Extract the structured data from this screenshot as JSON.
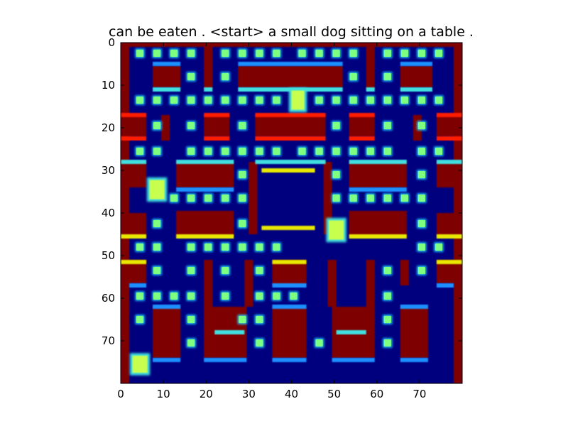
{
  "chart_data": {
    "type": "heatmap",
    "title": "can be eaten . <start> a small dog sitting on a table .",
    "xlabel": "",
    "ylabel": "",
    "x_range": [
      0,
      80
    ],
    "y_range": [
      0,
      80
    ],
    "y_inverted": true,
    "grid": false,
    "colormap": "jet",
    "colors": {
      "background": "#00007f",
      "wall": "#7f0000",
      "wall_edge_red": "#ff1a00",
      "wall_edge_yellow": "#e8e800",
      "edge_cyan": "#40e0e0",
      "edge_blue": "#1e90ff",
      "pellet": "#7fff7f",
      "pellet_halo": "#1ec8ff",
      "sprite": "#c8ff50"
    },
    "x_ticks": [
      "0",
      "10",
      "20",
      "30",
      "40",
      "50",
      "60",
      "70"
    ],
    "y_ticks": [
      "0",
      "10",
      "20",
      "30",
      "40",
      "50",
      "60",
      "70"
    ],
    "walls": [
      [
        0,
        0,
        2,
        80,
        "wall"
      ],
      [
        78,
        0,
        2,
        80,
        "wall"
      ],
      [
        0,
        0,
        80,
        1,
        "wall"
      ],
      [
        19.5,
        0,
        2,
        11,
        "wall"
      ],
      [
        57.5,
        0,
        2,
        11,
        "wall"
      ],
      [
        7.5,
        5.5,
        6.5,
        5,
        "wall"
      ],
      [
        27.5,
        5.5,
        24.5,
        5,
        "wall"
      ],
      [
        65.5,
        5.5,
        7.5,
        5,
        "wall"
      ],
      [
        19.5,
        17,
        6,
        5,
        "wall"
      ],
      [
        31.5,
        17,
        16.5,
        5,
        "wall"
      ],
      [
        53.5,
        17,
        6,
        5,
        "wall"
      ],
      [
        0,
        17,
        6,
        5,
        "wall"
      ],
      [
        74,
        17,
        6,
        5,
        "wall"
      ],
      [
        13,
        28,
        13.5,
        6,
        "wall"
      ],
      [
        53.5,
        28,
        13.5,
        6,
        "wall"
      ],
      [
        0,
        28,
        6,
        6,
        "wall"
      ],
      [
        74,
        28,
        6,
        6,
        "wall"
      ],
      [
        0,
        40,
        6,
        5.5,
        "wall"
      ],
      [
        74,
        40,
        6,
        5.5,
        "wall"
      ],
      [
        13,
        39.5,
        13.5,
        6,
        "wall"
      ],
      [
        53.5,
        39.5,
        13.5,
        6,
        "wall"
      ],
      [
        9.5,
        17,
        2,
        6,
        "wall"
      ],
      [
        68.5,
        17,
        2,
        6,
        "wall"
      ],
      [
        30,
        28,
        2,
        17,
        "wall"
      ],
      [
        47.5,
        28,
        2,
        17,
        "wall"
      ],
      [
        0,
        51,
        6,
        5.5,
        "wall"
      ],
      [
        74,
        51,
        6,
        5.5,
        "wall"
      ],
      [
        19.5,
        51,
        2,
        11,
        "wall"
      ],
      [
        57.5,
        51,
        2,
        11,
        "wall"
      ],
      [
        35.5,
        51,
        8,
        6,
        "wall"
      ],
      [
        48.5,
        51,
        2,
        11,
        "wall"
      ],
      [
        29,
        51,
        2,
        11,
        "wall"
      ],
      [
        7.5,
        62,
        6.5,
        12,
        "wall"
      ],
      [
        19.5,
        62,
        10,
        12,
        "wall"
      ],
      [
        35.5,
        62,
        8,
        12,
        "wall"
      ],
      [
        49.5,
        62,
        10,
        12,
        "wall"
      ],
      [
        65.5,
        62,
        6.5,
        12,
        "wall"
      ],
      [
        65.5,
        51,
        2,
        6,
        "wall"
      ],
      [
        0,
        56.5,
        2,
        23.5,
        "wall"
      ],
      [
        78,
        56.5,
        2,
        23.5,
        "wall"
      ]
    ],
    "edges": [
      [
        7.5,
        4.5,
        6.5,
        1,
        "edge_blue"
      ],
      [
        27.5,
        4.5,
        24.5,
        1,
        "edge_blue"
      ],
      [
        65.5,
        4.5,
        7.5,
        1,
        "edge_blue"
      ],
      [
        7.5,
        10.5,
        6.5,
        1,
        "edge_cyan"
      ],
      [
        27.5,
        10.5,
        24.5,
        1,
        "edge_cyan"
      ],
      [
        65.5,
        10.5,
        7.5,
        1,
        "edge_cyan"
      ],
      [
        19.5,
        10.5,
        2,
        1,
        "edge_cyan"
      ],
      [
        57.5,
        10.5,
        2,
        1,
        "edge_cyan"
      ],
      [
        19.5,
        16.5,
        6,
        1,
        "wall_edge_red"
      ],
      [
        31.5,
        16.5,
        16.5,
        1,
        "wall_edge_red"
      ],
      [
        53.5,
        16.5,
        6,
        1,
        "wall_edge_red"
      ],
      [
        0,
        16.5,
        6,
        1,
        "wall_edge_red"
      ],
      [
        74,
        16.5,
        6,
        1,
        "wall_edge_red"
      ],
      [
        19.5,
        22,
        6,
        1,
        "wall_edge_red"
      ],
      [
        31.5,
        22,
        16.5,
        1,
        "wall_edge_red"
      ],
      [
        53.5,
        22,
        6,
        1,
        "wall_edge_red"
      ],
      [
        0,
        22,
        6,
        1,
        "wall_edge_red"
      ],
      [
        74,
        22,
        6,
        1,
        "wall_edge_red"
      ],
      [
        0,
        27.5,
        6,
        1,
        "edge_cyan"
      ],
      [
        74,
        27.5,
        6,
        1,
        "edge_cyan"
      ],
      [
        13,
        27.5,
        13.5,
        1,
        "edge_cyan"
      ],
      [
        53.5,
        27.5,
        13.5,
        1,
        "edge_cyan"
      ],
      [
        31.5,
        27.5,
        16.5,
        1,
        "edge_cyan"
      ],
      [
        13,
        34,
        13.5,
        1,
        "edge_blue"
      ],
      [
        53.5,
        34,
        13.5,
        1,
        "edge_blue"
      ],
      [
        33,
        29.5,
        12.5,
        1,
        "wall_edge_yellow"
      ],
      [
        33,
        43,
        12.5,
        1,
        "wall_edge_yellow"
      ],
      [
        0,
        45,
        6,
        1,
        "wall_edge_yellow"
      ],
      [
        74,
        45,
        6,
        1,
        "wall_edge_yellow"
      ],
      [
        13,
        45,
        13.5,
        1,
        "wall_edge_yellow"
      ],
      [
        53.5,
        45,
        13.5,
        1,
        "wall_edge_yellow"
      ],
      [
        0,
        51,
        6,
        1,
        "wall_edge_yellow"
      ],
      [
        74,
        51,
        6,
        1,
        "wall_edge_yellow"
      ],
      [
        35.5,
        51,
        8,
        1,
        "wall_edge_yellow"
      ],
      [
        2,
        56.5,
        4,
        1,
        "edge_blue"
      ],
      [
        74,
        56.5,
        4,
        1,
        "edge_blue"
      ],
      [
        35.5,
        56.5,
        8,
        1,
        "edge_blue"
      ],
      [
        7.5,
        61.5,
        6.5,
        1,
        "edge_blue"
      ],
      [
        35.5,
        61.5,
        8,
        1,
        "edge_blue"
      ],
      [
        65.5,
        61.5,
        6.5,
        1,
        "edge_blue"
      ],
      [
        22,
        67.5,
        7,
        1,
        "edge_cyan"
      ],
      [
        50.5,
        67.5,
        7,
        1,
        "edge_cyan"
      ],
      [
        7.5,
        74,
        6.5,
        1,
        "edge_blue"
      ],
      [
        19.5,
        74,
        10,
        1,
        "edge_blue"
      ],
      [
        35.5,
        74,
        8,
        1,
        "edge_blue"
      ],
      [
        49.5,
        74,
        10,
        1,
        "edge_blue"
      ],
      [
        65.5,
        74,
        6.5,
        1,
        "edge_blue"
      ]
    ],
    "pellets": [
      [
        4.5,
        2.5
      ],
      [
        8.5,
        2.5
      ],
      [
        12.5,
        2.5
      ],
      [
        16.5,
        2.5
      ],
      [
        24.5,
        2.5
      ],
      [
        28.5,
        2.5
      ],
      [
        32.5,
        2.5
      ],
      [
        36.5,
        2.5
      ],
      [
        42.5,
        2.5
      ],
      [
        46.5,
        2.5
      ],
      [
        50.5,
        2.5
      ],
      [
        54.5,
        2.5
      ],
      [
        62.5,
        2.5
      ],
      [
        66.5,
        2.5
      ],
      [
        70.5,
        2.5
      ],
      [
        74.5,
        2.5
      ],
      [
        16.5,
        8
      ],
      [
        24.5,
        8
      ],
      [
        54.5,
        8
      ],
      [
        62.5,
        8
      ],
      [
        4.5,
        13.5
      ],
      [
        8.5,
        13.5
      ],
      [
        12.5,
        13.5
      ],
      [
        16.5,
        13.5
      ],
      [
        20.5,
        13.5
      ],
      [
        24.5,
        13.5
      ],
      [
        28.5,
        13.5
      ],
      [
        32.5,
        13.5
      ],
      [
        36.5,
        13.5
      ],
      [
        46.5,
        13.5
      ],
      [
        50.5,
        13.5
      ],
      [
        54.5,
        13.5
      ],
      [
        58.5,
        13.5
      ],
      [
        62.5,
        13.5
      ],
      [
        66.5,
        13.5
      ],
      [
        70.5,
        13.5
      ],
      [
        74.5,
        13.5
      ],
      [
        8.5,
        19.5
      ],
      [
        16.5,
        19.5
      ],
      [
        28.5,
        19.5
      ],
      [
        50.5,
        19.5
      ],
      [
        62.5,
        19.5
      ],
      [
        70.5,
        19.5
      ],
      [
        4.5,
        25.5
      ],
      [
        8.5,
        25.5
      ],
      [
        16.5,
        25.5
      ],
      [
        20.5,
        25.5
      ],
      [
        24.5,
        25.5
      ],
      [
        28.5,
        25.5
      ],
      [
        32.5,
        25.5
      ],
      [
        36.5,
        25.5
      ],
      [
        42.5,
        25.5
      ],
      [
        46.5,
        25.5
      ],
      [
        50.5,
        25.5
      ],
      [
        54.5,
        25.5
      ],
      [
        58.5,
        25.5
      ],
      [
        62.5,
        25.5
      ],
      [
        70.5,
        25.5
      ],
      [
        74.5,
        25.5
      ],
      [
        28.5,
        31
      ],
      [
        50.5,
        31
      ],
      [
        70.5,
        31
      ],
      [
        12.5,
        36.5
      ],
      [
        16.5,
        36.5
      ],
      [
        20.5,
        36.5
      ],
      [
        24.5,
        36.5
      ],
      [
        28.5,
        36.5
      ],
      [
        50.5,
        36.5
      ],
      [
        54.5,
        36.5
      ],
      [
        58.5,
        36.5
      ],
      [
        62.5,
        36.5
      ],
      [
        66.5,
        36.5
      ],
      [
        70.5,
        36.5
      ],
      [
        8.5,
        42.5
      ],
      [
        28.5,
        42.5
      ],
      [
        70.5,
        42.5
      ],
      [
        4.5,
        48
      ],
      [
        8.5,
        48
      ],
      [
        16.5,
        48
      ],
      [
        20.5,
        48
      ],
      [
        24.5,
        48
      ],
      [
        28.5,
        48
      ],
      [
        32.5,
        48
      ],
      [
        36.5,
        48
      ],
      [
        70.5,
        48
      ],
      [
        74.5,
        48
      ],
      [
        8.5,
        53.5
      ],
      [
        16.5,
        53.5
      ],
      [
        24.5,
        53.5
      ],
      [
        32.5,
        53.5
      ],
      [
        62.5,
        53.5
      ],
      [
        70.5,
        53.5
      ],
      [
        4.5,
        59.5
      ],
      [
        8.5,
        59.5
      ],
      [
        12.5,
        59.5
      ],
      [
        16.5,
        59.5
      ],
      [
        24.5,
        59.5
      ],
      [
        32.5,
        59.5
      ],
      [
        36.5,
        59.5
      ],
      [
        40.5,
        59.5
      ],
      [
        62.5,
        59.5
      ],
      [
        4.5,
        65
      ],
      [
        16.5,
        65
      ],
      [
        28.5,
        65
      ],
      [
        32.5,
        65
      ],
      [
        62.5,
        65
      ],
      [
        16.5,
        70.5
      ],
      [
        32.5,
        70.5
      ],
      [
        46.5,
        70.5
      ],
      [
        62.5,
        70.5
      ]
    ],
    "sprites": [
      [
        41.5,
        13.5,
        3,
        4.5
      ],
      [
        8.5,
        34.5,
        3.5,
        4.5
      ],
      [
        50.5,
        44,
        3.5,
        4.5
      ],
      [
        4.5,
        75.5,
        3.5,
        4
      ]
    ]
  }
}
